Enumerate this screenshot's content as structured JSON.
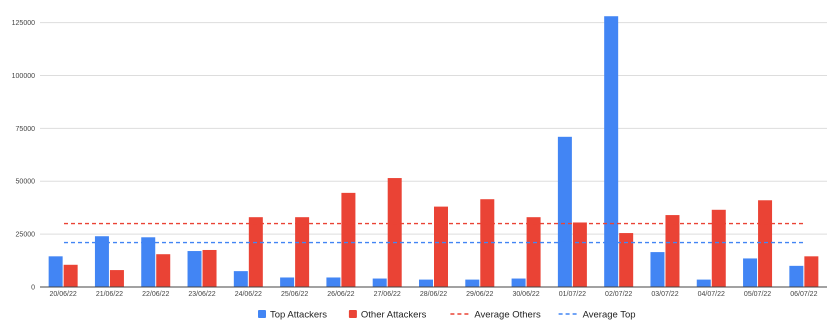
{
  "chart_data": {
    "type": "bar",
    "categories": [
      "20/06/22",
      "21/06/22",
      "22/06/22",
      "23/06/22",
      "24/06/22",
      "25/06/22",
      "26/06/22",
      "27/06/22",
      "28/06/22",
      "29/06/22",
      "30/06/22",
      "01/07/22",
      "02/07/22",
      "03/07/22",
      "04/07/22",
      "05/07/22",
      "06/07/22"
    ],
    "series": [
      {
        "name": "Top Attackers",
        "color": "#4285f4",
        "values": [
          14500,
          24000,
          23500,
          17000,
          7500,
          4500,
          4500,
          4000,
          3500,
          3500,
          4000,
          71000,
          128000,
          16500,
          3500,
          13500,
          10000
        ]
      },
      {
        "name": "Other Attackers",
        "color": "#ea4335",
        "values": [
          10500,
          8000,
          15500,
          17500,
          33000,
          33000,
          44500,
          51500,
          38000,
          41500,
          33000,
          30500,
          25500,
          34000,
          36500,
          41000,
          14500
        ]
      }
    ],
    "reference_lines": [
      {
        "name": "Average Others",
        "color": "#ea4335",
        "style": "dashed",
        "value": 30000
      },
      {
        "name": "Average Top",
        "color": "#4285f4",
        "style": "dashed",
        "value": 21000
      }
    ],
    "yticks": [
      "0",
      "25000",
      "50000",
      "75000",
      "100000",
      "125000"
    ],
    "ylim": [
      0,
      130000
    ],
    "grid": true,
    "legend_position": "bottom-center",
    "title": "",
    "xlabel": "",
    "ylabel": ""
  }
}
